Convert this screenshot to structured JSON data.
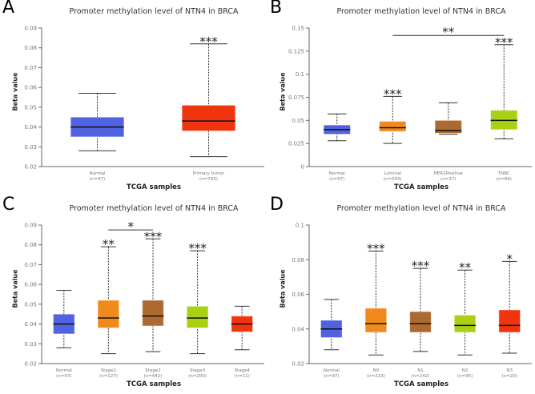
{
  "chart_data": [
    {
      "type": "box",
      "panel_letter": "A",
      "title": "Promoter methylation level of NTN4 in BRCA",
      "xlabel": "TCGA samples",
      "ylabel": "Beta value",
      "ylim": [
        0.02,
        0.09
      ],
      "yticks": [
        0.02,
        0.03,
        0.04,
        0.05,
        0.06,
        0.07,
        0.08,
        0.09
      ],
      "ytick_labels": [
        "0.02",
        "0.03",
        "0.04",
        "0.05",
        "0.06",
        "0.07",
        "0.08",
        "0.09"
      ],
      "groups": [
        {
          "name": "Normal",
          "n": "(n=97)",
          "color": "#5062e0",
          "min": 0.028,
          "q1": 0.035,
          "median": 0.04,
          "q3": 0.045,
          "max": 0.057,
          "sig": ""
        },
        {
          "name": "Primary tumor",
          "n": "(n=793)",
          "color": "#f0340e",
          "min": 0.025,
          "q1": 0.038,
          "median": 0.043,
          "q3": 0.051,
          "max": 0.082,
          "sig": "***"
        }
      ],
      "brackets": []
    },
    {
      "type": "box",
      "panel_letter": "B",
      "title": "Promoter methylation level of NTN4 in BRCA",
      "xlabel": "TCGA samples",
      "ylabel": "Beta value",
      "ylim": [
        0,
        0.15
      ],
      "yticks": [
        0,
        0.025,
        0.05,
        0.075,
        0.1,
        0.125,
        0.15
      ],
      "ytick_labels": [
        "0",
        "0.025",
        "0.05",
        "0.075",
        "0.1",
        "0.125",
        "0.15"
      ],
      "groups": [
        {
          "name": "Normal",
          "n": "(n=97)",
          "color": "#5062e0",
          "min": 0.028,
          "q1": 0.035,
          "median": 0.04,
          "q3": 0.045,
          "max": 0.057,
          "sig": ""
        },
        {
          "name": "Luminal",
          "n": "(n=393)",
          "color": "#f08a1c",
          "min": 0.025,
          "q1": 0.038,
          "median": 0.042,
          "q3": 0.049,
          "max": 0.076,
          "sig": "***"
        },
        {
          "name": "HER2Positive",
          "n": "(n=37)",
          "color": "#ad6a30",
          "min": 0.035,
          "q1": 0.036,
          "median": 0.039,
          "q3": 0.05,
          "max": 0.069,
          "sig": ""
        },
        {
          "name": "TNBC",
          "n": "(n=84)",
          "color": "#a9d012",
          "min": 0.03,
          "q1": 0.04,
          "median": 0.05,
          "q3": 0.061,
          "max": 0.132,
          "sig": "***"
        }
      ],
      "brackets": [
        {
          "from": 1,
          "to": 3,
          "y": 0.142,
          "label": "**"
        }
      ]
    },
    {
      "type": "box",
      "panel_letter": "C",
      "title": "Promoter methylation level of NTN4 in BRCA",
      "xlabel": "TCGA samples",
      "ylabel": "Beta value",
      "ylim": [
        0.02,
        0.09
      ],
      "yticks": [
        0.02,
        0.03,
        0.04,
        0.05,
        0.06,
        0.07,
        0.08,
        0.09
      ],
      "ytick_labels": [
        "0.02",
        "0.03",
        "0.04",
        "0.05",
        "0.06",
        "0.07",
        "0.08",
        "0.09"
      ],
      "groups": [
        {
          "name": "Normal",
          "n": "(n=97)",
          "color": "#5062e0",
          "min": 0.028,
          "q1": 0.035,
          "median": 0.04,
          "q3": 0.045,
          "max": 0.057,
          "sig": ""
        },
        {
          "name": "Stage1",
          "n": "(n=127)",
          "color": "#f08a1c",
          "min": 0.025,
          "q1": 0.038,
          "median": 0.043,
          "q3": 0.052,
          "max": 0.079,
          "sig": "**"
        },
        {
          "name": "Stage2",
          "n": "(n=442)",
          "color": "#ad6a30",
          "min": 0.026,
          "q1": 0.039,
          "median": 0.044,
          "q3": 0.052,
          "max": 0.083,
          "sig": "***"
        },
        {
          "name": "Stage3",
          "n": "(n=200)",
          "color": "#a9d012",
          "min": 0.025,
          "q1": 0.038,
          "median": 0.043,
          "q3": 0.049,
          "max": 0.077,
          "sig": "***"
        },
        {
          "name": "Stage4",
          "n": "(n=11)",
          "color": "#f0340e",
          "min": 0.027,
          "q1": 0.036,
          "median": 0.04,
          "q3": 0.044,
          "max": 0.049,
          "sig": ""
        }
      ],
      "brackets": [
        {
          "from": 1,
          "to": 2,
          "y": 0.0875,
          "label": "*"
        }
      ]
    },
    {
      "type": "box",
      "panel_letter": "D",
      "title": "Promoter methylation level of NTN4 in BRCA",
      "xlabel": "TCGA samples",
      "ylabel": "Beta value",
      "ylim": [
        0.02,
        0.1
      ],
      "yticks": [
        0.02,
        0.04,
        0.06,
        0.08,
        0.1
      ],
      "ytick_labels": [
        "0.02",
        "0.04",
        "0.06",
        "0.08",
        "0.1"
      ],
      "groups": [
        {
          "name": "Normal",
          "n": "(n=97)",
          "color": "#5062e0",
          "min": 0.028,
          "q1": 0.035,
          "median": 0.04,
          "q3": 0.045,
          "max": 0.057,
          "sig": ""
        },
        {
          "name": "N0",
          "n": "(n=233)",
          "color": "#f08a1c",
          "min": 0.025,
          "q1": 0.038,
          "median": 0.043,
          "q3": 0.052,
          "max": 0.085,
          "sig": "***"
        },
        {
          "name": "N1",
          "n": "(n=242)",
          "color": "#ad6a30",
          "min": 0.027,
          "q1": 0.038,
          "median": 0.043,
          "q3": 0.05,
          "max": 0.075,
          "sig": "***"
        },
        {
          "name": "N2",
          "n": "(n=95)",
          "color": "#a9d012",
          "min": 0.025,
          "q1": 0.038,
          "median": 0.042,
          "q3": 0.048,
          "max": 0.074,
          "sig": "**"
        },
        {
          "name": "N3",
          "n": "(n=20)",
          "color": "#f0340e",
          "min": 0.026,
          "q1": 0.038,
          "median": 0.042,
          "q3": 0.051,
          "max": 0.079,
          "sig": "*"
        }
      ],
      "brackets": []
    }
  ]
}
